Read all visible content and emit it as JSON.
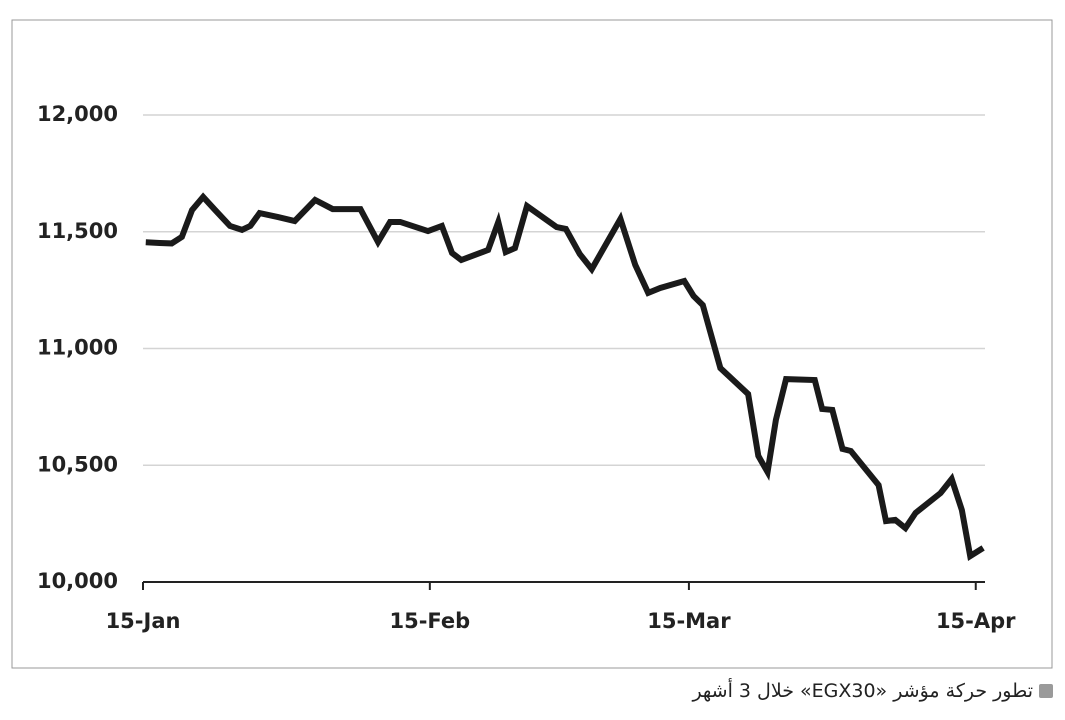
{
  "chart_data": {
    "type": "line",
    "caption": "تطور حركة مؤشر «EGX30» خلال 3 أشهر",
    "x": [
      0.3,
      1.8,
      3.1,
      4.2,
      5.3,
      6.5,
      7.8,
      9.4,
      10.7,
      11.6,
      12.6,
      14.6,
      16.4,
      18.6,
      20.5,
      23.5,
      25.4,
      26.7,
      27.8,
      30.8,
      32.3,
      33.4,
      34.4,
      37.3,
      38.4,
      39.2,
      40.2,
      41.5,
      44.7,
      45.7,
      47.2,
      48.5,
      51.6,
      53.2,
      54.6,
      55.9,
      58.5,
      59.5,
      60.5,
      62.4,
      65.4,
      66.5,
      67.5,
      68.4,
      69.5,
      72.6,
      73.4,
      74.5,
      75.6,
      76.5,
      79.5,
      80.3,
      81.3,
      82.4,
      83.5,
      86.2,
      87.4,
      88.5,
      89.4,
      90.8
    ],
    "series": [
      {
        "color": "#1a1a1a",
        "values": [
          11455,
          11452,
          11450,
          11478,
          11593,
          11649,
          11593,
          11525,
          11508,
          11525,
          11580,
          11563,
          11546,
          11636,
          11597,
          11597,
          11456,
          11542,
          11542,
          11503,
          11525,
          11409,
          11379,
          11422,
          11542,
          11413,
          11430,
          11610,
          11520,
          11512,
          11405,
          11340,
          11555,
          11358,
          11238,
          11259,
          11289,
          11225,
          11186,
          10916,
          10805,
          10540,
          10471,
          10694,
          10869,
          10865,
          10741,
          10737,
          10570,
          10561,
          10415,
          10261,
          10266,
          10231,
          10296,
          10381,
          10441,
          10308,
          10111,
          10146
        ]
      }
    ],
    "xlim": [
      0,
      91
    ],
    "xticks": [
      {
        "value": 0,
        "label": "15-Jan"
      },
      {
        "value": 31,
        "label": "15-Feb"
      },
      {
        "value": 59,
        "label": "15-Mar"
      },
      {
        "value": 90,
        "label": "15-Apr"
      }
    ],
    "ylim": [
      10000,
      12000
    ],
    "yticks": [
      {
        "value": 10000,
        "label": "10,000"
      },
      {
        "value": 10500,
        "label": "10,500"
      },
      {
        "value": 11000,
        "label": "11,000"
      },
      {
        "value": 11500,
        "label": "11,500"
      },
      {
        "value": 12000,
        "label": "12,000"
      }
    ],
    "grid": true
  }
}
